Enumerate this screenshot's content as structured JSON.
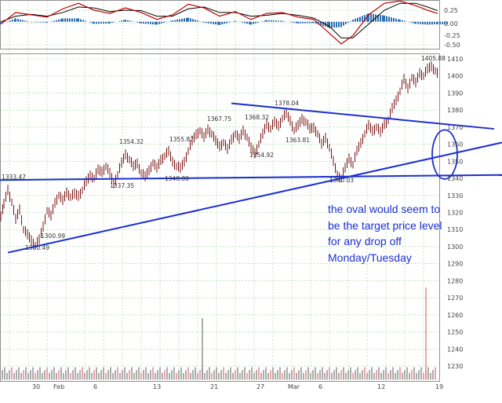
{
  "chart_data": {
    "type": "line",
    "price_axis": {
      "ticks": [
        1230,
        1240,
        1250,
        1260,
        1270,
        1280,
        1290,
        1300,
        1310,
        1320,
        1330,
        1340,
        1350,
        1360,
        1370,
        1380,
        1390,
        1400,
        1410
      ]
    },
    "indicator_axis": {
      "ticks": [
        "0.25",
        "0.00",
        "-0.25",
        "-0.50"
      ]
    },
    "x_ticks": [
      "30",
      "Feb",
      "6",
      "13",
      "21",
      "27",
      "Mar",
      "6",
      "12",
      "19"
    ],
    "price_labels": [
      "1333.47",
      "1300.49",
      "1300.99",
      "1337.35",
      "1354.32",
      "1348.00",
      "1355.87",
      "1367.75",
      "1368.32",
      "1354.92",
      "1378.04",
      "1363.81",
      "1340.03",
      "1405.88"
    ],
    "price_series": [
      [
        1,
        1318
      ],
      [
        5,
        1325
      ],
      [
        10,
        1333.5
      ],
      [
        15,
        1326
      ],
      [
        20,
        1316
      ],
      [
        25,
        1322
      ],
      [
        30,
        1310
      ],
      [
        35,
        1307
      ],
      [
        40,
        1304
      ],
      [
        45,
        1300.5
      ],
      [
        50,
        1304
      ],
      [
        55,
        1312
      ],
      [
        60,
        1321
      ],
      [
        65,
        1318
      ],
      [
        70,
        1326
      ],
      [
        75,
        1330
      ],
      [
        80,
        1327
      ],
      [
        85,
        1332
      ],
      [
        90,
        1329
      ],
      [
        95,
        1331
      ],
      [
        100,
        1330
      ],
      [
        105,
        1333
      ],
      [
        110,
        1338
      ],
      [
        115,
        1342
      ],
      [
        120,
        1340
      ],
      [
        125,
        1345
      ],
      [
        130,
        1344
      ],
      [
        135,
        1347
      ],
      [
        140,
        1343
      ],
      [
        145,
        1337.4
      ],
      [
        150,
        1342
      ],
      [
        155,
        1349
      ],
      [
        160,
        1354.3
      ],
      [
        165,
        1351
      ],
      [
        170,
        1347
      ],
      [
        175,
        1349
      ],
      [
        180,
        1343
      ],
      [
        185,
        1341
      ],
      [
        190,
        1345
      ],
      [
        195,
        1349
      ],
      [
        200,
        1346
      ],
      [
        205,
        1351
      ],
      [
        210,
        1353
      ],
      [
        215,
        1355.9
      ],
      [
        220,
        1350
      ],
      [
        225,
        1347
      ],
      [
        230,
        1346
      ],
      [
        235,
        1350
      ],
      [
        240,
        1356
      ],
      [
        245,
        1362
      ],
      [
        250,
        1366
      ],
      [
        255,
        1367.8
      ],
      [
        260,
        1364
      ],
      [
        265,
        1369
      ],
      [
        270,
        1366
      ],
      [
        275,
        1362
      ],
      [
        280,
        1359
      ],
      [
        285,
        1361
      ],
      [
        290,
        1357
      ],
      [
        295,
        1363
      ],
      [
        300,
        1366
      ],
      [
        305,
        1363
      ],
      [
        310,
        1368.3
      ],
      [
        315,
        1364
      ],
      [
        320,
        1358
      ],
      [
        325,
        1355
      ],
      [
        330,
        1360
      ],
      [
        335,
        1366
      ],
      [
        340,
        1372
      ],
      [
        345,
        1369
      ],
      [
        350,
        1373
      ],
      [
        355,
        1371
      ],
      [
        360,
        1375
      ],
      [
        365,
        1378
      ],
      [
        370,
        1374
      ],
      [
        375,
        1368
      ],
      [
        380,
        1371
      ],
      [
        385,
        1375
      ],
      [
        390,
        1373
      ],
      [
        395,
        1369
      ],
      [
        400,
        1370
      ],
      [
        405,
        1366
      ],
      [
        410,
        1360
      ],
      [
        415,
        1364
      ],
      [
        420,
        1358
      ],
      [
        425,
        1350
      ],
      [
        430,
        1342
      ],
      [
        435,
        1340
      ],
      [
        440,
        1346
      ],
      [
        445,
        1352
      ],
      [
        450,
        1348
      ],
      [
        455,
        1356
      ],
      [
        460,
        1361
      ],
      [
        465,
        1366
      ],
      [
        470,
        1371
      ],
      [
        475,
        1368
      ],
      [
        480,
        1370
      ],
      [
        485,
        1367
      ],
      [
        490,
        1372
      ],
      [
        495,
        1374
      ],
      [
        500,
        1381
      ],
      [
        505,
        1386
      ],
      [
        510,
        1391
      ],
      [
        515,
        1398
      ],
      [
        520,
        1393
      ],
      [
        525,
        1399
      ],
      [
        530,
        1396
      ],
      [
        535,
        1402
      ],
      [
        540,
        1400
      ],
      [
        545,
        1404
      ],
      [
        550,
        1405.9
      ],
      [
        555,
        1403
      ],
      [
        558,
        1401
      ]
    ],
    "oscillator_macd": [
      [
        1,
        -0.05
      ],
      [
        20,
        0.2
      ],
      [
        40,
        0.15
      ],
      [
        60,
        0.1
      ],
      [
        80,
        0.28
      ],
      [
        100,
        0.4
      ],
      [
        120,
        0.25
      ],
      [
        140,
        0.18
      ],
      [
        160,
        0.3
      ],
      [
        180,
        0.2
      ],
      [
        200,
        0.05
      ],
      [
        220,
        0.15
      ],
      [
        240,
        0.38
      ],
      [
        260,
        0.3
      ],
      [
        280,
        0.12
      ],
      [
        300,
        0.22
      ],
      [
        320,
        0.05
      ],
      [
        340,
        0.18
      ],
      [
        360,
        0.2
      ],
      [
        380,
        0.1
      ],
      [
        400,
        0.05
      ],
      [
        420,
        -0.25
      ],
      [
        435,
        -0.48
      ],
      [
        450,
        -0.3
      ],
      [
        470,
        0.15
      ],
      [
        490,
        0.4
      ],
      [
        510,
        0.45
      ],
      [
        530,
        0.35
      ],
      [
        545,
        0.25
      ],
      [
        558,
        0.18
      ]
    ],
    "oscillator_signal": [
      [
        1,
        0.0
      ],
      [
        20,
        0.12
      ],
      [
        40,
        0.16
      ],
      [
        60,
        0.12
      ],
      [
        80,
        0.2
      ],
      [
        100,
        0.32
      ],
      [
        120,
        0.3
      ],
      [
        140,
        0.22
      ],
      [
        160,
        0.25
      ],
      [
        180,
        0.24
      ],
      [
        200,
        0.12
      ],
      [
        220,
        0.12
      ],
      [
        240,
        0.28
      ],
      [
        260,
        0.32
      ],
      [
        280,
        0.2
      ],
      [
        300,
        0.2
      ],
      [
        320,
        0.12
      ],
      [
        340,
        0.14
      ],
      [
        360,
        0.18
      ],
      [
        380,
        0.14
      ],
      [
        400,
        0.08
      ],
      [
        420,
        -0.1
      ],
      [
        435,
        -0.35
      ],
      [
        450,
        -0.35
      ],
      [
        470,
        -0.05
      ],
      [
        490,
        0.25
      ],
      [
        510,
        0.4
      ],
      [
        530,
        0.4
      ],
      [
        545,
        0.32
      ],
      [
        558,
        0.24
      ]
    ],
    "volume_spikes": [
      [
        258,
        1258
      ],
      [
        543,
        1276
      ]
    ],
    "volume_ylim": [
      1220,
      1285
    ],
    "ylim": [
      1218,
      1415
    ],
    "osc_ylim": [
      -0.62,
      0.42
    ],
    "xlim": [
      0,
      640
    ],
    "grid": true,
    "trendlines": [
      {
        "x1": 10,
        "y1": 1296.5,
        "x2": 640,
        "y2": 1361
      },
      {
        "x1": 0,
        "y1": 1339,
        "x2": 640,
        "y2": 1342
      },
      {
        "x1": 295,
        "y1": 1384,
        "x2": 630,
        "y2": 1369
      }
    ],
    "oval": {
      "cx": 567,
      "cy": 1354,
      "rx_units": 16,
      "ry_units": 16
    },
    "colors": {
      "price": "#7a1010",
      "trend": "#1d2fd0",
      "macd": "#c00000",
      "signal": "#000000",
      "histogram": "#2e6fb0",
      "grid": "#9ed49e",
      "volume": "#888888",
      "volume_spike_red": "#e08080"
    }
  },
  "annotation": {
    "line1": "the oval would seem to",
    "line2": "be the target price level",
    "line3": "for any drop off",
    "line4": "Monday/Tuesday"
  }
}
